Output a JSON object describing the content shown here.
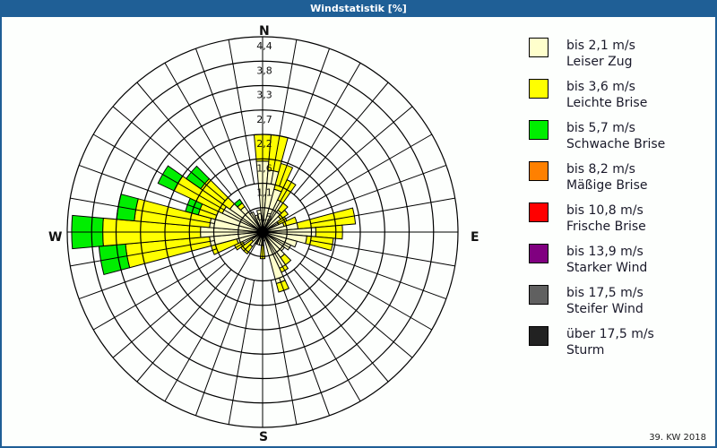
{
  "title": "Windstatistik [%]",
  "footer": "39. KW 2018",
  "compass": {
    "n": "N",
    "e": "E",
    "s": "S",
    "w": "W"
  },
  "chart_data": {
    "type": "wind-rose",
    "title": "Windstatistik [%]",
    "unit": "%",
    "ring_labels": [
      "0,5",
      "1,1",
      "1,6",
      "2,2",
      "2,7",
      "3,3",
      "3,8",
      "4,4"
    ],
    "rmax": 4.4,
    "grid": true,
    "sector_width_deg": 10,
    "directions_deg": [
      0,
      10,
      20,
      30,
      40,
      50,
      60,
      70,
      80,
      90,
      100,
      110,
      120,
      130,
      140,
      150,
      160,
      170,
      180,
      190,
      200,
      210,
      220,
      230,
      240,
      250,
      260,
      270,
      280,
      290,
      300,
      310,
      320,
      330,
      340,
      350
    ],
    "series": [
      {
        "name": "bis 2,1 m/s Leiser Zug",
        "color": "#ffffcc",
        "values": [
          1.6,
          1.4,
          1.0,
          0.8,
          0.6,
          0.5,
          0.4,
          0.5,
          0.8,
          1.2,
          1.0,
          0.8,
          0.7,
          0.6,
          0.7,
          0.9,
          1.2,
          0.2,
          0.3,
          0.3,
          0.3,
          0.3,
          0.4,
          0.3,
          0.5,
          0.6,
          1.2,
          1.4,
          1.2,
          1.1,
          1.0,
          0.9,
          0.7,
          0.5,
          0.4,
          0.5
        ]
      },
      {
        "name": "bis 3,6 m/s Leichte Brise",
        "color": "#ffff00",
        "values": [
          0.6,
          0.8,
          0.6,
          0.5,
          0.2,
          0.2,
          0.2,
          0.3,
          1.3,
          0.6,
          0.6,
          0.0,
          0.0,
          0.0,
          0.2,
          0.1,
          0.2,
          0.0,
          0.3,
          0.0,
          0.0,
          0.0,
          0.2,
          0.3,
          0.2,
          0.6,
          1.9,
          2.2,
          1.7,
          0.4,
          1.2,
          0.8,
          0.1,
          0.0,
          0.0,
          0.0
        ]
      },
      {
        "name": "bis 5,7 m/s Schwache Brise",
        "color": "#00ee00",
        "values": [
          0.0,
          0.0,
          0.0,
          0.0,
          0.0,
          0.0,
          0.0,
          0.0,
          0.0,
          0.0,
          0.0,
          0.0,
          0.0,
          0.0,
          0.0,
          0.0,
          0.0,
          0.0,
          0.0,
          0.0,
          0.0,
          0.0,
          0.0,
          0.0,
          0.0,
          0.0,
          0.6,
          0.7,
          0.4,
          0.3,
          0.4,
          0.4,
          0.1,
          0.0,
          0.0,
          0.0
        ]
      },
      {
        "name": "bis 8,2 m/s Mäßige Brise",
        "color": "#ff8000",
        "values": []
      },
      {
        "name": "bis 10,8 m/s Frische Brise",
        "color": "#ff0000",
        "values": []
      },
      {
        "name": "bis 13,9 m/s Starker Wind",
        "color": "#800080",
        "values": []
      },
      {
        "name": "bis 17,5 m/s Steifer Wind",
        "color": "#606060",
        "values": []
      },
      {
        "name": "über 17,5 m/s Sturm",
        "color": "#222222",
        "values": []
      }
    ]
  },
  "legend": [
    {
      "line1": "bis 2,1 m/s",
      "line2": "Leiser Zug",
      "color": "#ffffcc"
    },
    {
      "line1": "bis 3,6 m/s",
      "line2": "Leichte Brise",
      "color": "#ffff00"
    },
    {
      "line1": "bis 5,7 m/s",
      "line2": "Schwache Brise",
      "color": "#00ee00"
    },
    {
      "line1": "bis 8,2 m/s",
      "line2": "Mäßige Brise",
      "color": "#ff8000"
    },
    {
      "line1": "bis 10,8 m/s",
      "line2": "Frische Brise",
      "color": "#ff0000"
    },
    {
      "line1": "bis 13,9 m/s",
      "line2": "Starker Wind",
      "color": "#800080"
    },
    {
      "line1": "bis 17,5 m/s",
      "line2": "Steifer Wind",
      "color": "#606060"
    },
    {
      "line1": "über 17,5 m/s",
      "line2": "Sturm",
      "color": "#222222"
    }
  ]
}
